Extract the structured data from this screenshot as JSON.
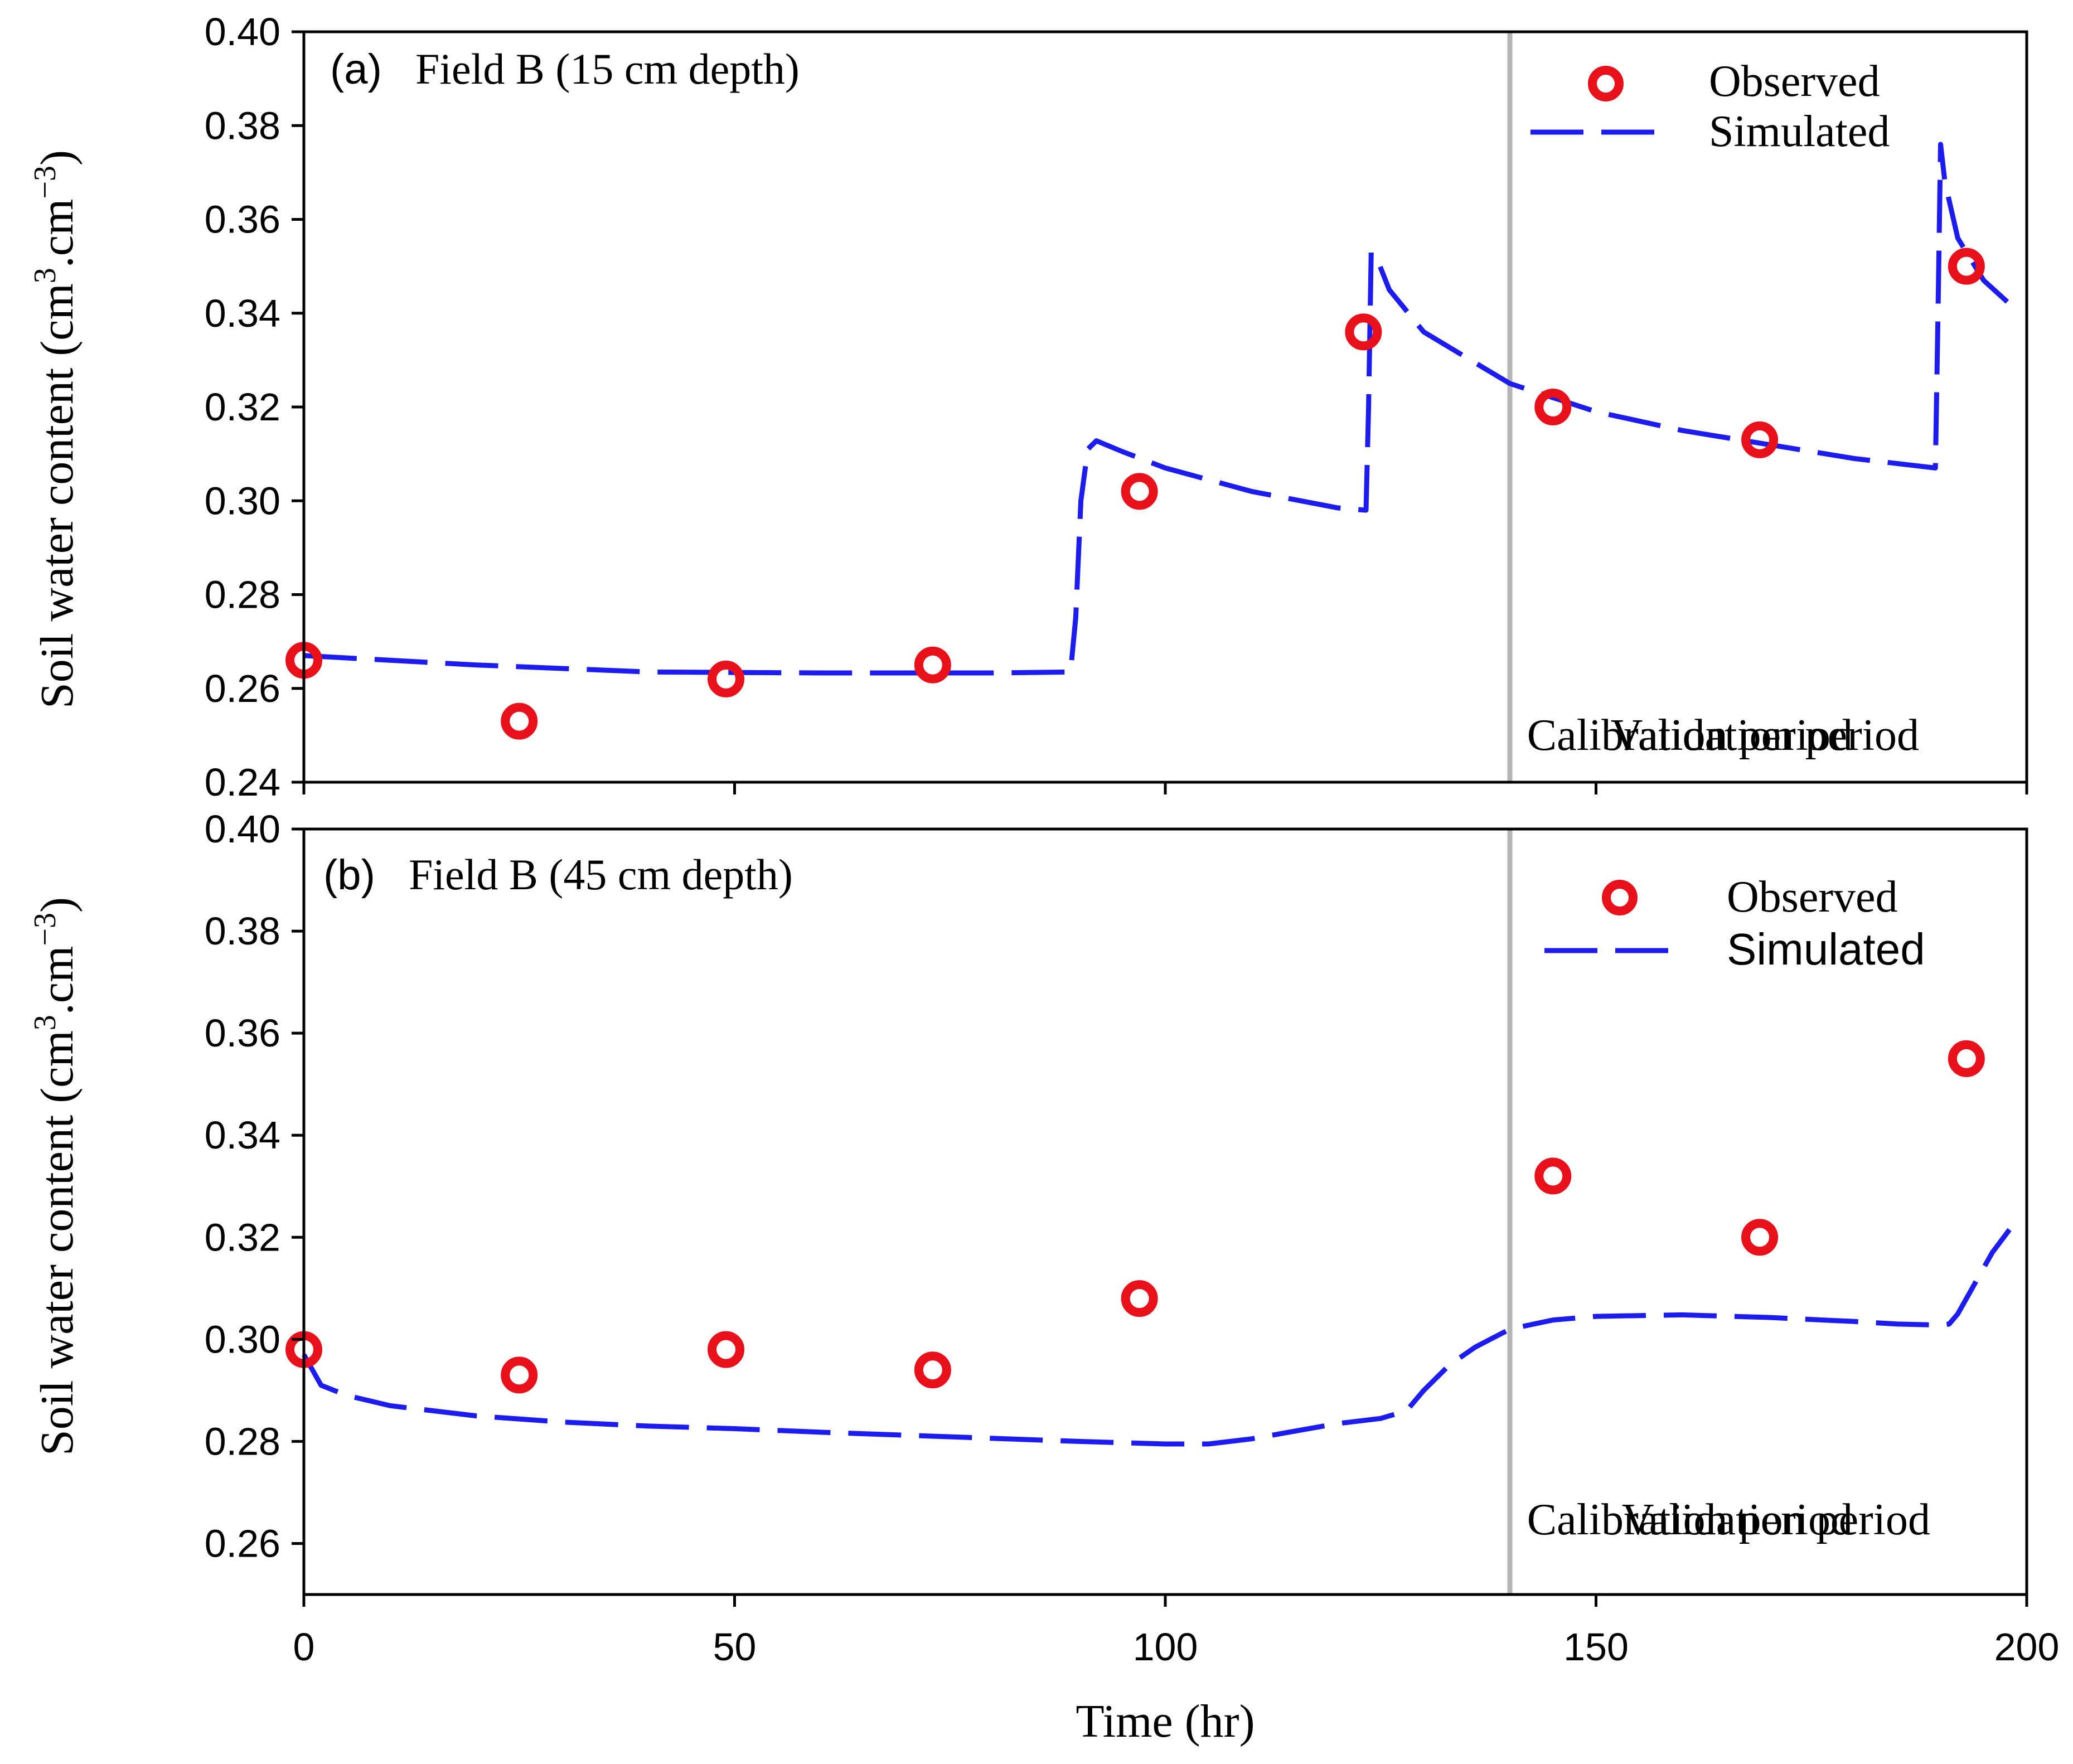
{
  "chart_data": [
    {
      "type": "line",
      "panel_label": "(a)",
      "title": "Field B (15 cm depth)",
      "ylabel": "Soil water content (cm3.cm−3)",
      "xlim": [
        0,
        200
      ],
      "ylim": [
        0.24,
        0.4
      ],
      "yticks": [
        "0.24",
        "0.26",
        "0.28",
        "0.30",
        "0.32",
        "0.34",
        "0.36",
        "0.38",
        "0.40"
      ],
      "ytick_values": [
        0.24,
        0.26,
        0.28,
        0.3,
        0.32,
        0.34,
        0.36,
        0.38,
        0.4
      ],
      "xtick_values": [
        0,
        50,
        100,
        150,
        200
      ],
      "divider_x": 140,
      "period_labels": {
        "left": "Calibration period",
        "right": "Validation period"
      },
      "legend": {
        "observed": "Observed",
        "simulated": "Simulated",
        "position": "top-right"
      },
      "series": [
        {
          "name": "Observed",
          "kind": "scatter",
          "color": "#e8101b",
          "x": [
            0,
            25,
            49,
            73,
            97,
            123,
            145,
            169,
            193
          ],
          "y": [
            0.266,
            0.253,
            0.262,
            0.265,
            0.302,
            0.336,
            0.32,
            0.313,
            0.35
          ]
        },
        {
          "name": "Simulated",
          "kind": "line",
          "color": "#1c1cf0",
          "x": [
            0,
            20,
            40,
            60,
            80,
            89,
            89.6,
            90.2,
            91,
            92,
            95,
            100,
            110,
            120,
            123.3,
            123.6,
            123.9,
            124.5,
            126,
            130,
            140,
            150,
            160,
            170,
            180,
            189.4,
            189.7,
            190,
            190.5,
            192,
            195,
            198
          ],
          "y": [
            0.267,
            0.265,
            0.2635,
            0.2633,
            0.2633,
            0.2635,
            0.275,
            0.3,
            0.311,
            0.3128,
            0.3105,
            0.307,
            0.302,
            0.2985,
            0.298,
            0.32,
            0.353,
            0.352,
            0.345,
            0.336,
            0.325,
            0.319,
            0.315,
            0.312,
            0.309,
            0.307,
            0.34,
            0.376,
            0.368,
            0.356,
            0.347,
            0.342
          ]
        }
      ]
    },
    {
      "type": "line",
      "panel_label": "(b)",
      "title": "Field B (45 cm depth)",
      "ylabel": "Soil water content (cm3.cm−3)",
      "xlabel": "Time (hr)",
      "xlim": [
        0,
        200
      ],
      "ylim": [
        0.25,
        0.4
      ],
      "yticks": [
        "0.26",
        "0.28",
        "0.30",
        "0.32",
        "0.34",
        "0.36",
        "0.38",
        "0.40"
      ],
      "ytick_values": [
        0.26,
        0.28,
        0.3,
        0.32,
        0.34,
        0.36,
        0.38,
        0.4
      ],
      "xticks": [
        "0",
        "50",
        "100",
        "150",
        "200"
      ],
      "xtick_values": [
        0,
        50,
        100,
        150,
        200
      ],
      "divider_x": 140,
      "period_labels": {
        "left": "Calibration period",
        "right": "Validation period"
      },
      "legend": {
        "observed": "Observed",
        "simulated": "Simulated",
        "position": "top-right"
      },
      "series": [
        {
          "name": "Observed",
          "kind": "scatter",
          "color": "#e8101b",
          "x": [
            0,
            25,
            49,
            73,
            97,
            145,
            169,
            193
          ],
          "y": [
            0.298,
            0.293,
            0.298,
            0.294,
            0.308,
            0.332,
            0.32,
            0.355
          ]
        },
        {
          "name": "Simulated",
          "kind": "line",
          "color": "#1c1cf0",
          "x": [
            0,
            2,
            5,
            10,
            20,
            30,
            40,
            50,
            60,
            70,
            80,
            90,
            100,
            105,
            110,
            115,
            120,
            125,
            128,
            130,
            133,
            136,
            140,
            145,
            150,
            160,
            170,
            180,
            185,
            190,
            191,
            192,
            194,
            196,
            198
          ],
          "y": [
            0.297,
            0.291,
            0.289,
            0.287,
            0.285,
            0.2838,
            0.283,
            0.2825,
            0.2818,
            0.2812,
            0.2806,
            0.28,
            0.2795,
            0.2795,
            0.2805,
            0.282,
            0.2835,
            0.2845,
            0.286,
            0.29,
            0.295,
            0.2985,
            0.302,
            0.3038,
            0.3045,
            0.3048,
            0.3043,
            0.3035,
            0.303,
            0.3028,
            0.303,
            0.305,
            0.311,
            0.317,
            0.3215
          ]
        }
      ]
    }
  ]
}
